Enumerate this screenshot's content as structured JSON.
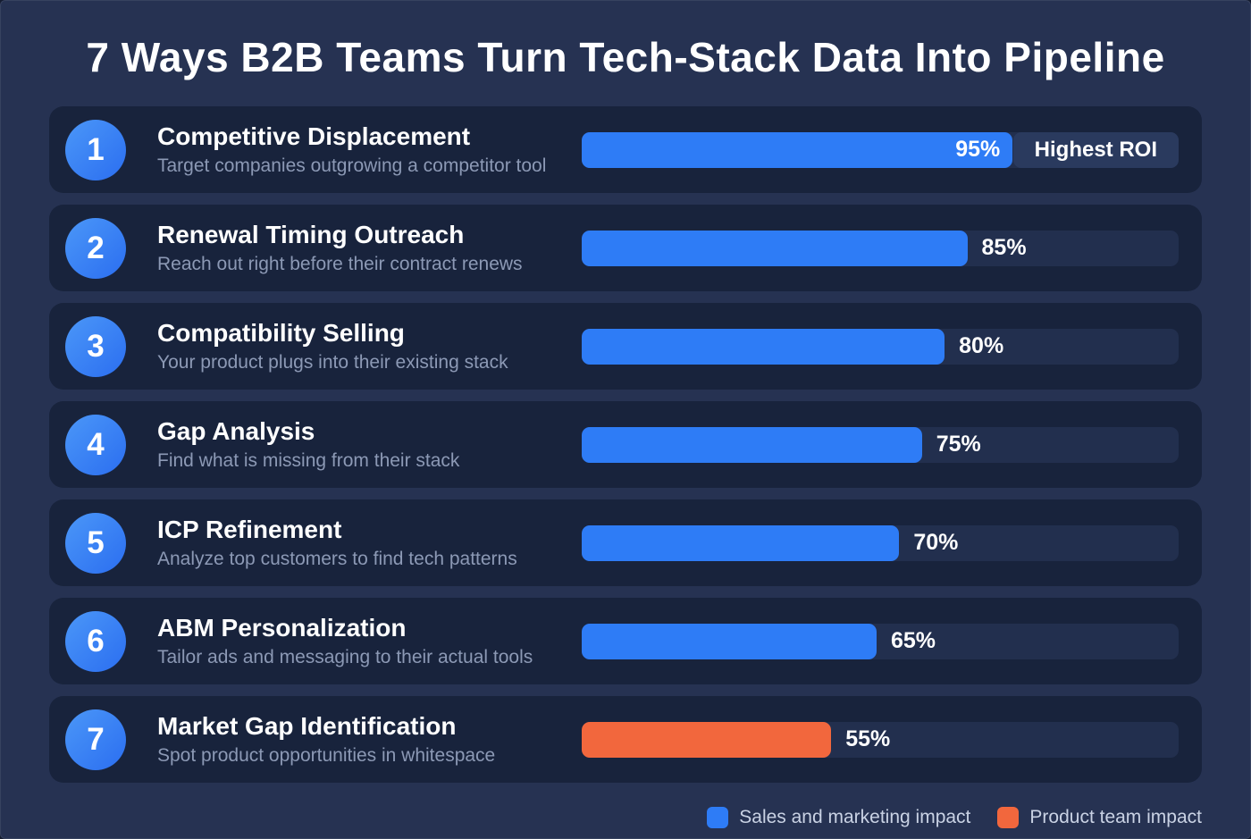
{
  "page": {
    "title": "7 Ways B2B Teams Turn Tech-Stack Data Into Pipeline"
  },
  "colors": {
    "background": "#263252",
    "row_background": "#18233c",
    "bar_track": "#222f4e",
    "bar_blue": "#2e7cf6",
    "bar_orange": "#f2673d",
    "title_text": "#ffffff",
    "subtitle_text": "#8c99b5"
  },
  "chart_data": {
    "type": "bar",
    "orientation": "horizontal",
    "title": "7 Ways B2B Teams Turn Tech-Stack Data Into Pipeline",
    "value_unit": "%",
    "xlim": [
      0,
      100
    ],
    "legend_position": "bottom-right",
    "categories": [
      "Competitive Displacement",
      "Renewal Timing Outreach",
      "Compatibility Selling",
      "Gap Analysis",
      "ICP Refinement",
      "ABM Personalization",
      "Market Gap Identification"
    ],
    "values": [
      95,
      85,
      80,
      75,
      70,
      65,
      55
    ],
    "rows": [
      {
        "number": "1",
        "title": "Competitive Displacement",
        "subtitle": "Target companies outgrowing a competitor tool",
        "value": 95,
        "value_label": "95%",
        "series": "Sales and marketing impact",
        "badge": "Highest ROI"
      },
      {
        "number": "2",
        "title": "Renewal Timing Outreach",
        "subtitle": "Reach out right before their contract renews",
        "value": 85,
        "value_label": "85%",
        "series": "Sales and marketing impact"
      },
      {
        "number": "3",
        "title": "Compatibility Selling",
        "subtitle": "Your product plugs into their existing stack",
        "value": 80,
        "value_label": "80%",
        "series": "Sales and marketing impact"
      },
      {
        "number": "4",
        "title": "Gap Analysis",
        "subtitle": "Find what is missing from their stack",
        "value": 75,
        "value_label": "75%",
        "series": "Sales and marketing impact"
      },
      {
        "number": "5",
        "title": "ICP Refinement",
        "subtitle": "Analyze top customers to find tech patterns",
        "value": 70,
        "value_label": "70%",
        "series": "Sales and marketing impact"
      },
      {
        "number": "6",
        "title": "ABM Personalization",
        "subtitle": "Tailor ads and messaging to their actual tools",
        "value": 65,
        "value_label": "65%",
        "series": "Sales and marketing impact"
      },
      {
        "number": "7",
        "title": "Market Gap Identification",
        "subtitle": "Spot product opportunities in whitespace",
        "value": 55,
        "value_label": "55%",
        "series": "Product team impact"
      }
    ],
    "legend": [
      {
        "label": "Sales and marketing impact",
        "color": "#2e7cf6"
      },
      {
        "label": "Product team impact",
        "color": "#f2673d"
      }
    ]
  }
}
